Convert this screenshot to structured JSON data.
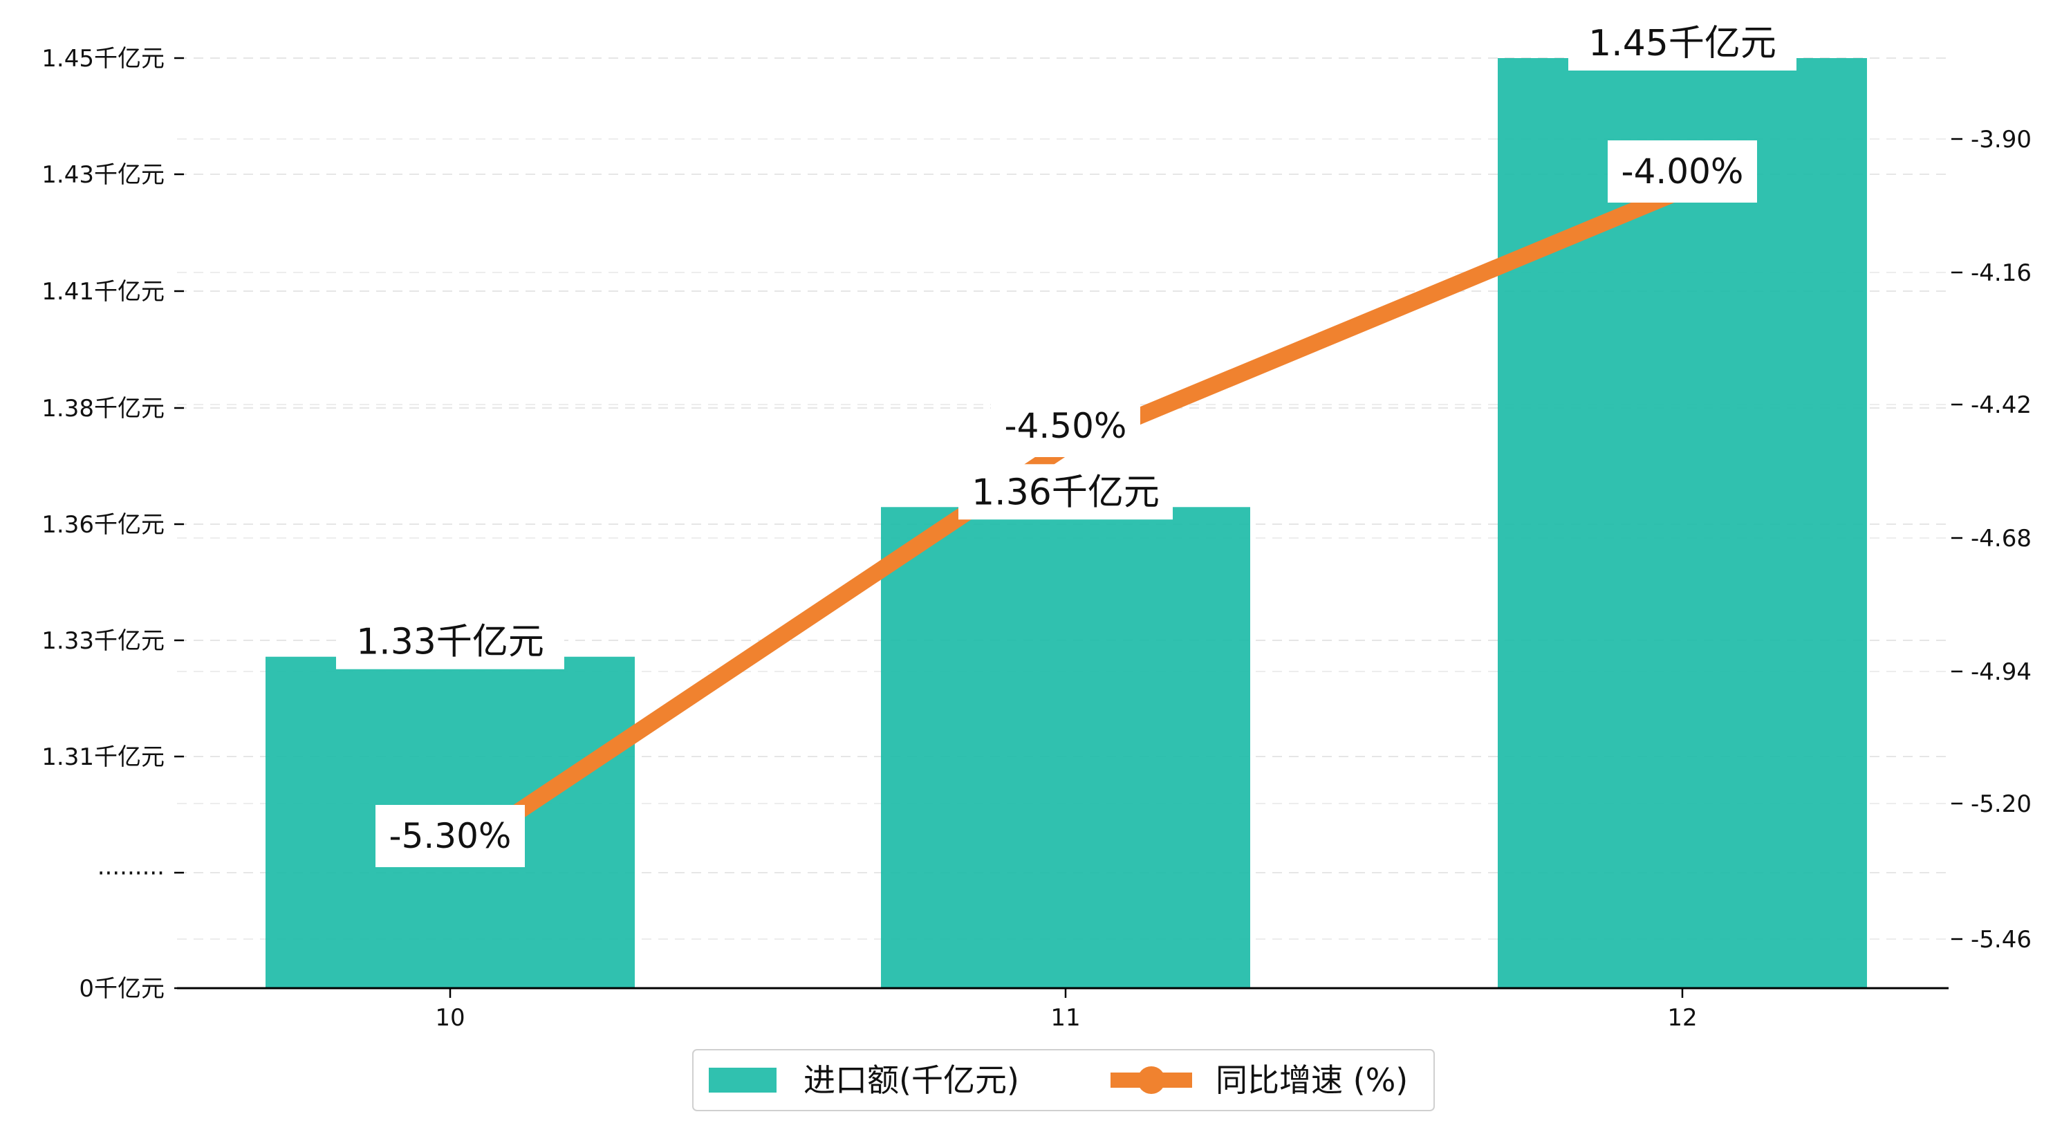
{
  "chart_data": {
    "type": "bar",
    "categories": [
      "10",
      "11",
      "12"
    ],
    "series": [
      {
        "name": "进口额(千亿元)",
        "type": "bar",
        "axis": "left",
        "values": [
          1.33,
          1.36,
          1.45
        ],
        "labels": [
          "1.33千亿元",
          "1.36千亿元",
          "1.45千亿元"
        ],
        "color": "#1ABAA6"
      },
      {
        "name": "同比增速 (%)",
        "type": "line",
        "axis": "right",
        "values": [
          -5.3,
          -4.5,
          -4.0
        ],
        "labels": [
          "-5.30%",
          "-4.50%",
          "-4.00%"
        ],
        "color": "#F0822F"
      }
    ],
    "y_left": {
      "ticks": [
        "0千亿元",
        "·········",
        "1.31千亿元",
        "1.33千亿元",
        "1.36千亿元",
        "1.38千亿元",
        "1.41千亿元",
        "1.43千亿元",
        "1.45千亿元"
      ],
      "broken_axis": true
    },
    "y_right": {
      "ticks": [
        "-5.46",
        "-5.20",
        "-4.94",
        "-4.68",
        "-4.42",
        "-4.16",
        "-3.90"
      ],
      "ylim": [
        -5.59,
        -3.79
      ]
    },
    "grid": "horizontal dashed",
    "legend_position": "bottom-center",
    "title": "",
    "xlabel": "",
    "ylabel": ""
  }
}
